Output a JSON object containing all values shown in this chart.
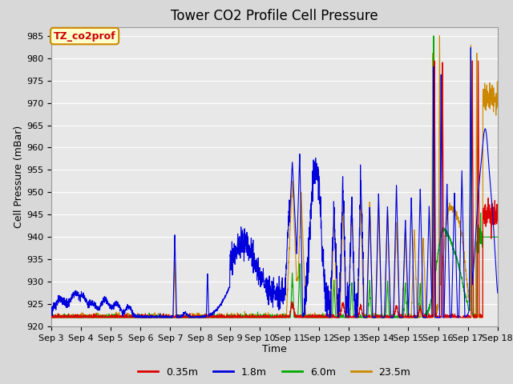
{
  "title": "Tower CO2 Profile Cell Pressure",
  "xlabel": "Time",
  "ylabel": "Cell Pressure (mBar)",
  "ylim": [
    920,
    987
  ],
  "yticks": [
    920,
    925,
    930,
    935,
    940,
    945,
    950,
    955,
    960,
    965,
    970,
    975,
    980,
    985
  ],
  "xtick_labels": [
    "Sep 3",
    "Sep 4",
    "Sep 5",
    "Sep 6",
    "Sep 7",
    "Sep 8",
    "Sep 9",
    "Sep 10",
    "Sep 11",
    "Sep 12",
    "Sep 13",
    "Sep 14",
    "Sep 15",
    "Sep 16",
    "Sep 17",
    "Sep 18"
  ],
  "colors": {
    "0.35m": "#dd0000",
    "1.8m": "#0000dd",
    "6.0m": "#00aa00",
    "23.5m": "#cc8800"
  },
  "annotation_text": "TZ_co2prof",
  "annotation_bg": "#ffffcc",
  "annotation_border": "#cc8800",
  "fig_bg": "#d8d8d8",
  "plot_bg": "#e8e8e8",
  "grid_color": "#ffffff",
  "title_fontsize": 12,
  "axis_fontsize": 9,
  "tick_fontsize": 8
}
